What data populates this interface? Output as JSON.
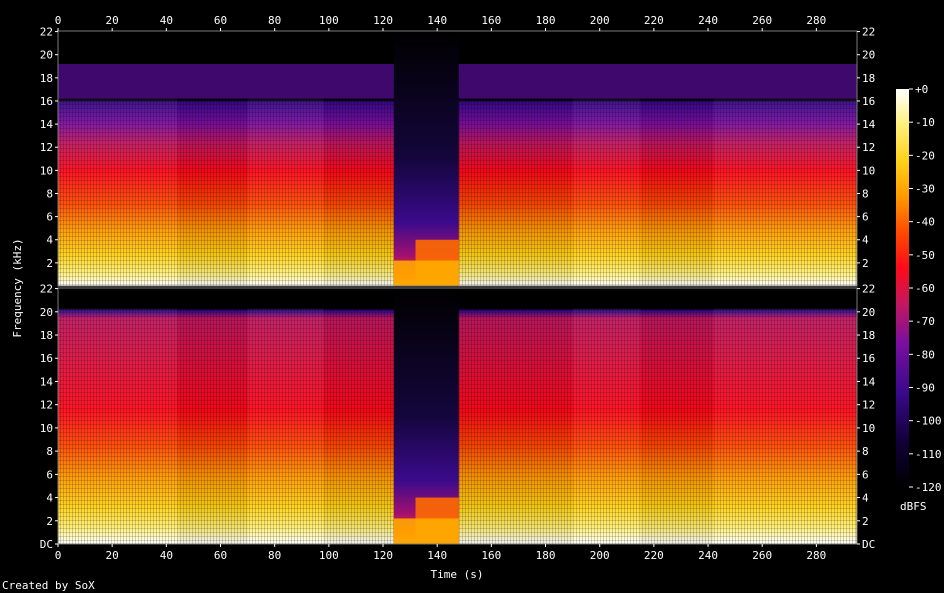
{
  "chart_data": {
    "type": "heatmap",
    "title": "",
    "xlabel": "Time (s)",
    "ylabel": "Frequency (kHz)",
    "xlim": [
      0,
      295
    ],
    "x_ticks": [
      0,
      20,
      40,
      60,
      80,
      100,
      120,
      140,
      160,
      180,
      200,
      220,
      240,
      260,
      280
    ],
    "channels": [
      {
        "name": "top",
        "ylim": [
          0,
          22.05
        ],
        "y_ticks": [
          "2",
          "4",
          "6",
          "8",
          "10",
          "12",
          "14",
          "16",
          "18",
          "20",
          "22"
        ],
        "upper_cutoff_khz": 16.2,
        "gap": {
          "start_s": 124,
          "end_s": 148,
          "residual_cutoff_khz": 4.0
        }
      },
      {
        "name": "bottom",
        "ylim": [
          0,
          22.05
        ],
        "y_ticks": [
          "DC",
          "2",
          "4",
          "6",
          "8",
          "10",
          "12",
          "14",
          "16",
          "18",
          "20",
          "22"
        ],
        "upper_cutoff_khz": 20.3,
        "gap": {
          "start_s": 124,
          "end_s": 148,
          "residual_cutoff_khz": 4.0
        }
      }
    ],
    "segments_s": [
      0,
      44,
      70,
      98,
      124,
      148,
      190,
      215,
      242,
      295
    ],
    "colorbar": {
      "label": "dBFS",
      "min": -120,
      "max": 0,
      "ticks": [
        "+0",
        "-10",
        "-20",
        "-30",
        "-40",
        "-50",
        "-60",
        "-70",
        "-80",
        "-90",
        "-100",
        "-110",
        "-120"
      ]
    },
    "colors": {
      "background": "#000000",
      "palette": [
        "#000000",
        "#12003c",
        "#3a0a8c",
        "#7a0ea0",
        "#c2185f",
        "#ff0a1a",
        "#ff4a00",
        "#ff9a00",
        "#ffd21a",
        "#fff07a",
        "#ffffff"
      ]
    }
  },
  "footer": {
    "credit": "Created by SoX"
  }
}
